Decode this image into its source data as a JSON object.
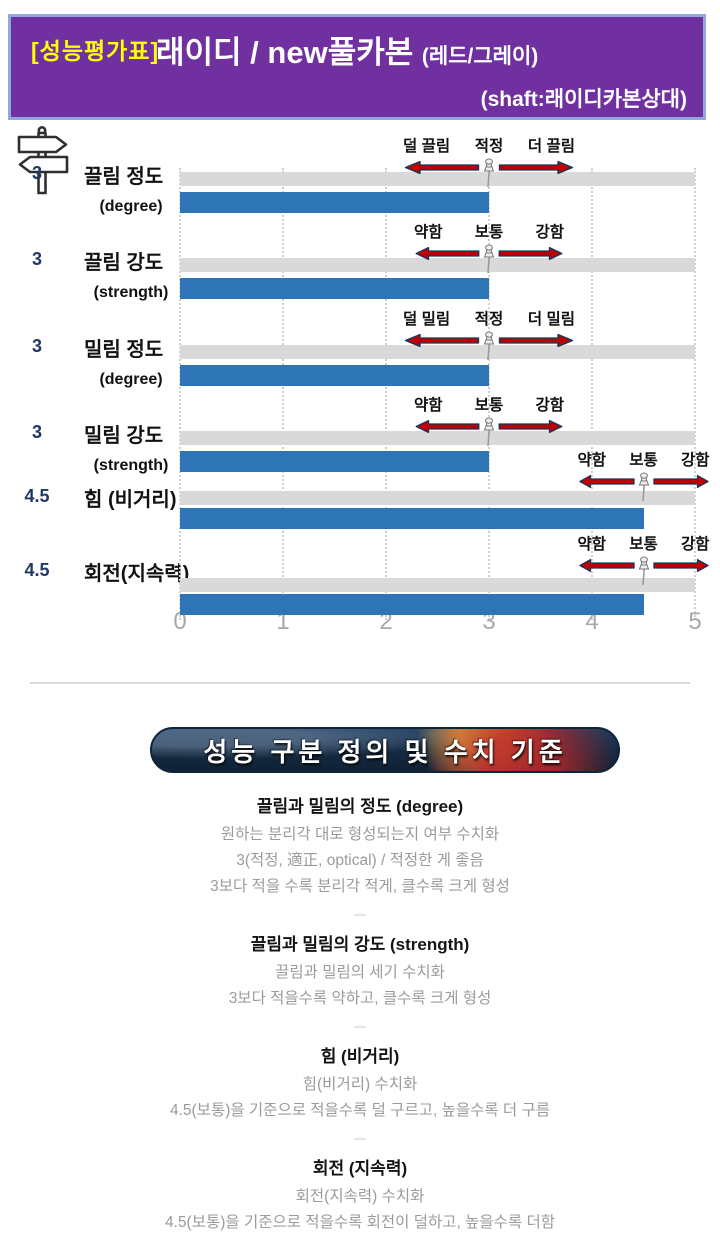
{
  "header": {
    "tag": "[성능평가표]",
    "title": "래이디 / new풀카본",
    "title_paren": "(레드/그레이)",
    "shaft_note": "(shaft:래이디카본상대)",
    "background_color": "#7030a0",
    "border_color": "#8eaadb",
    "tag_color": "#ffff00"
  },
  "icons": {
    "corner": "signpost-icon",
    "annotation_marker": "pushpin-icon",
    "annotation_arrows": [
      "arrow-left-icon",
      "arrow-right-icon"
    ]
  },
  "chart_data": {
    "type": "bar",
    "orientation": "horizontal",
    "xlim": [
      0,
      5
    ],
    "x_ticks": [
      "0",
      "1",
      "2",
      "3",
      "4",
      "5"
    ],
    "grid": "dotted-vertical",
    "bar_color": "#2e75b6",
    "track_color": "#d9d9d9",
    "value_text_color": "#1f3864",
    "arrow_color": "#c00000",
    "categories": [
      "끌림 정도",
      "끌림 강도",
      "밀림 정도",
      "밀림 강도",
      "힘 (비거리)",
      "회전(지속력)"
    ],
    "category_sublabels": [
      "(degree)",
      "(strength)",
      "(degree)",
      "(strength)",
      "",
      ""
    ],
    "values": [
      3,
      3,
      3,
      3,
      4.5,
      4.5
    ],
    "value_labels": [
      "3",
      "3",
      "3",
      "3",
      "4.5",
      "4.5"
    ],
    "series": [
      {
        "name": "evaluation-bar",
        "values": [
          3,
          3,
          3,
          3,
          4.5,
          4.5
        ]
      },
      {
        "name": "scale-track",
        "values": [
          5,
          5,
          5,
          5,
          5,
          5
        ]
      }
    ],
    "annotations": [
      {
        "left": "덜 끌림",
        "center": "적정",
        "right": "더 끌림",
        "anchor": 3
      },
      {
        "left": "약함",
        "center": "보통",
        "right": "강함",
        "anchor": 3
      },
      {
        "left": "덜 밀림",
        "center": "적정",
        "right": "더 밀림",
        "anchor": 3
      },
      {
        "left": "약함",
        "center": "보통",
        "right": "강함",
        "anchor": 3
      },
      {
        "left": "약함",
        "center": "보통",
        "right": "강함",
        "anchor": 4.5
      },
      {
        "left": "약함",
        "center": "보통",
        "right": "강함",
        "anchor": 4.5
      }
    ]
  },
  "definitions": {
    "banner": "성능 구분 정의 및 수치 기준",
    "divider_glyph": "—",
    "blocks": [
      {
        "heading": "끌림과 밀림의 정도 (degree)",
        "lines": [
          "원하는 분리각 대로 형성되는지 여부 수치화",
          "3(적정, 適正, optical) / 적정한 게 좋음",
          "3보다 적을 수록 분리각 적게, 클수록 크게 형성"
        ]
      },
      {
        "heading": "끌림과 밀림의 강도 (strength)",
        "lines": [
          "끌림과 밀림의 세기 수치화",
          "3보다 적을수록 약하고, 클수록 크게 형성"
        ]
      },
      {
        "heading": "힘 (비거리)",
        "lines": [
          "힘(비거리) 수치화",
          "4.5(보통)을 기준으로 적을수록 덜 구르고, 높을수록 더 구름"
        ]
      },
      {
        "heading": "회전 (지속력)",
        "lines": [
          "회전(지속력) 수치화",
          "4.5(보통)을 기준으로 적을수록 회전이 덜하고, 높을수록 더함"
        ]
      }
    ]
  }
}
